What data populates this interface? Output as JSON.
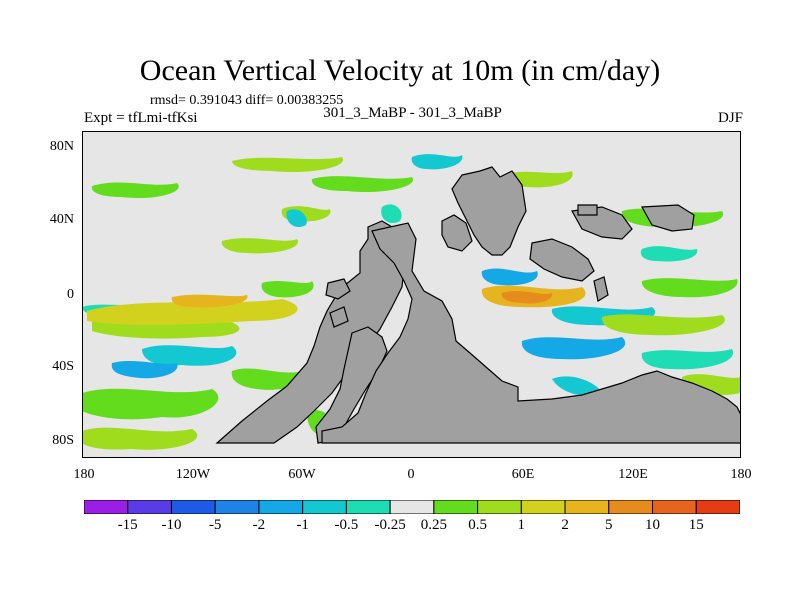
{
  "title": "Ocean Vertical Velocity at 10m (in cm/day)",
  "stats_line": "rmsd= 0.391043 diff= 0.00383255",
  "experiment": "Expt = tfLmi-tfKsi",
  "case_name": "301_3_MaBP - 301_3_MaBP",
  "season": "DJF",
  "lat_labels": [
    "80N",
    "40N",
    "0",
    "40S",
    "80S"
  ],
  "lon_labels": [
    "180",
    "120W",
    "60W",
    "0",
    "60E",
    "120E",
    "180"
  ],
  "colorbar": {
    "labels": [
      "-15",
      "-10",
      "-5",
      "-2",
      "-1",
      "-0.5",
      "-0.25",
      "0.25",
      "0.5",
      "1",
      "2",
      "5",
      "10",
      "15"
    ],
    "colors": [
      "#9b1ee6",
      "#5a3ce6",
      "#1e5ae6",
      "#1e82e6",
      "#14a8e6",
      "#14c8d2",
      "#1edcb4",
      "#e6e6e6",
      "#64dc1e",
      "#a0dc1e",
      "#d2d21e",
      "#e6b41e",
      "#e68c1e",
      "#e6641e",
      "#e63c14"
    ]
  },
  "colors": {
    "land": "#a0a0a0",
    "ocean_background": "#e6e6e6"
  }
}
